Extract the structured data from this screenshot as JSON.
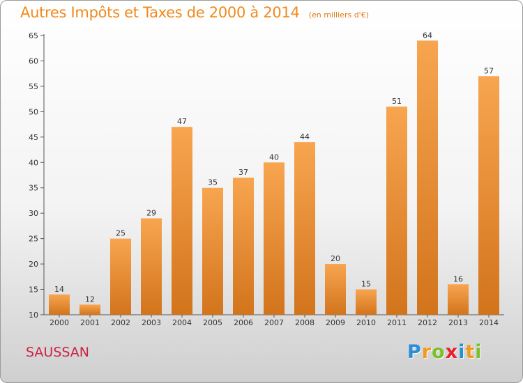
{
  "header": {
    "title": "Autres Impôts et Taxes de 2000 à 2014",
    "unit": "(en milliers d'€)"
  },
  "footer": {
    "commune": "SAUSSAN",
    "logo": {
      "letters": [
        "P",
        "r",
        "o",
        "x",
        "i",
        "t",
        "i"
      ],
      "colors": [
        "#2a8fd6",
        "#f39a1e",
        "#7bbf2a",
        "#e8202a",
        "#2a8fd6",
        "#f39a1e",
        "#7bbf2a"
      ]
    }
  },
  "colors": {
    "bar_top": "#f8a550",
    "bar_bottom": "#d2741c",
    "title": "#f08a1c",
    "axis": "#555555"
  },
  "chart_data": {
    "type": "bar",
    "categories": [
      "2000",
      "2001",
      "2002",
      "2003",
      "2004",
      "2005",
      "2006",
      "2007",
      "2008",
      "2009",
      "2010",
      "2011",
      "2012",
      "2013",
      "2014"
    ],
    "values": [
      14,
      12,
      25,
      29,
      47,
      35,
      37,
      40,
      44,
      20,
      15,
      51,
      64,
      16,
      57
    ],
    "title": "Autres Impôts et Taxes de 2000 à 2014",
    "subtitle": "(en milliers d'€)",
    "xlabel": "",
    "ylabel": "",
    "ylim": [
      10,
      65
    ],
    "yticks": [
      10,
      15,
      20,
      25,
      30,
      35,
      40,
      45,
      50,
      55,
      60,
      65
    ],
    "grid": false,
    "legend": "none"
  }
}
